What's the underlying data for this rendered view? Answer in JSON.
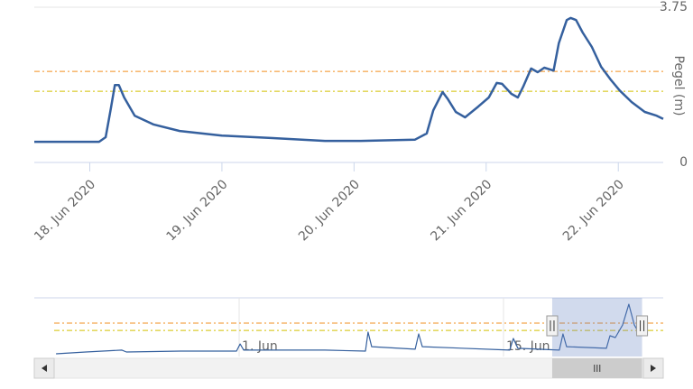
{
  "chart_data": [
    {
      "type": "line",
      "y_axis_title": "Pegel (m)",
      "color": "#35609e",
      "x": [
        17.58,
        18.07,
        18.12,
        18.16,
        18.19,
        18.22,
        18.26,
        18.34,
        18.48,
        18.68,
        19.0,
        19.37,
        19.78,
        20.05,
        20.46,
        20.55,
        20.6,
        20.67,
        20.71,
        20.77,
        20.84,
        20.94,
        21.02,
        21.08,
        21.12,
        21.19,
        21.24,
        21.28,
        21.34,
        21.39,
        21.44,
        21.51,
        21.55,
        21.61,
        21.64,
        21.68,
        21.73,
        21.8,
        21.87,
        21.94,
        22.01,
        22.1,
        22.2,
        22.29,
        22.34
      ],
      "values": [
        0.5,
        0.5,
        0.61,
        1.31,
        1.87,
        1.87,
        1.57,
        1.13,
        0.92,
        0.76,
        0.65,
        0.59,
        0.52,
        0.52,
        0.55,
        0.7,
        1.26,
        1.7,
        1.53,
        1.22,
        1.09,
        1.35,
        1.57,
        1.92,
        1.9,
        1.66,
        1.57,
        1.83,
        2.27,
        2.18,
        2.29,
        2.22,
        2.88,
        3.44,
        3.49,
        3.44,
        3.14,
        2.79,
        2.31,
        2.01,
        1.74,
        1.46,
        1.22,
        1.13,
        1.05
      ],
      "xlim": [
        17.58,
        22.34
      ],
      "xticks": [
        {
          "value": 18,
          "label": "18. Jun 2020"
        },
        {
          "value": 19,
          "label": "19. Jun 2020"
        },
        {
          "value": 20,
          "label": "20. Jun 2020"
        },
        {
          "value": 21,
          "label": "21. Jun 2020"
        },
        {
          "value": 22,
          "label": "22. Jun 2020"
        }
      ],
      "ylim": [
        0,
        3.75
      ],
      "yticks": [
        0,
        3.75
      ],
      "grid": true,
      "plot_lines": [
        {
          "value": 2.2,
          "color": "#f28f1f"
        },
        {
          "value": 1.72,
          "color": "#d4c000"
        }
      ]
    },
    {
      "type": "navigator",
      "color": "#35609e",
      "x": [
        -8.7,
        -7.12,
        -5.21,
        -4.97,
        -2.11,
        0.86,
        1.05,
        1.24,
        5.54,
        7.69,
        7.83,
        8.02,
        10.32,
        10.51,
        10.7,
        15.33,
        15.52,
        15.76,
        17.96,
        18.15,
        18.34,
        20.45,
        20.64,
        20.92,
        21.31,
        21.64,
        21.93,
        22.26
      ],
      "values": [
        0.18,
        0.3,
        0.42,
        0.3,
        0.36,
        0.36,
        0.83,
        0.42,
        0.42,
        0.36,
        1.61,
        0.65,
        0.48,
        1.49,
        0.65,
        0.42,
        1.19,
        0.54,
        0.42,
        1.49,
        0.65,
        0.54,
        1.37,
        1.25,
        2.08,
        3.45,
        2.08,
        1.37
      ],
      "xlim": [
        -9.85,
        23.46
      ],
      "xticks": [
        {
          "value": 1,
          "label": "1. Jun"
        },
        {
          "value": 15,
          "label": "15. Jun"
        }
      ],
      "ylim": [
        0,
        3.87
      ],
      "plot_lines": [
        {
          "value": 2.2,
          "color": "#f28f1f"
        },
        {
          "value": 1.72,
          "color": "#d4c000"
        }
      ]
    }
  ]
}
